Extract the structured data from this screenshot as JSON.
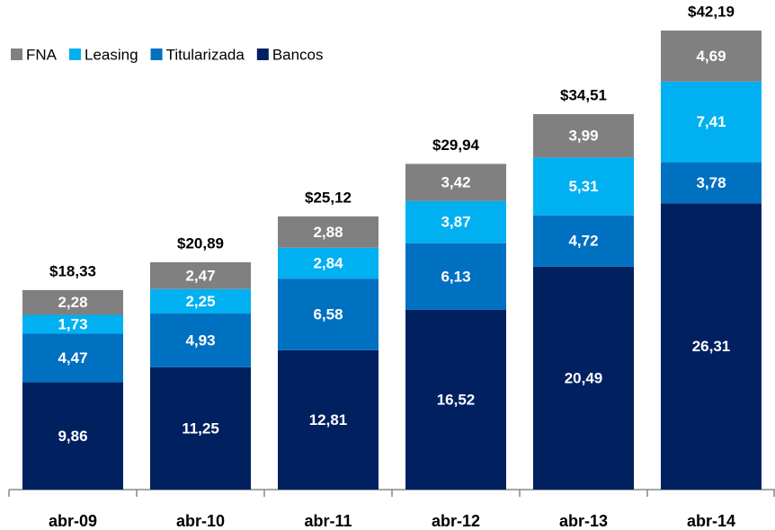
{
  "chart_data": {
    "type": "stacked_bar",
    "categories": [
      "abr-09",
      "abr-10",
      "abr-11",
      "abr-12",
      "abr-13",
      "abr-14"
    ],
    "series": [
      {
        "name": "Bancos",
        "color": "#002060",
        "values": [
          9.86,
          11.25,
          12.81,
          16.52,
          20.49,
          26.31
        ],
        "value_labels": [
          "9,86",
          "11,25",
          "12,81",
          "16,52",
          "20,49",
          "26,31"
        ]
      },
      {
        "name": "Titularizada",
        "color": "#0070c0",
        "values": [
          4.47,
          4.93,
          6.58,
          6.13,
          4.72,
          3.78
        ],
        "value_labels": [
          "4,47",
          "4,93",
          "6,58",
          "6,13",
          "4,72",
          "3,78"
        ]
      },
      {
        "name": "Leasing",
        "color": "#00b0f0",
        "values": [
          1.73,
          2.25,
          2.84,
          3.87,
          5.31,
          7.41
        ],
        "value_labels": [
          "1,73",
          "2,25",
          "2,84",
          "3,87",
          "5,31",
          "7,41"
        ]
      },
      {
        "name": "FNA",
        "color": "#808080",
        "values": [
          2.28,
          2.47,
          2.88,
          3.42,
          3.99,
          4.69
        ],
        "value_labels": [
          "2,28",
          "2,47",
          "2,88",
          "3,42",
          "3,99",
          "4,69"
        ]
      }
    ],
    "totals": {
      "values": [
        18.33,
        20.89,
        25.12,
        29.94,
        34.51,
        42.19
      ],
      "value_labels": [
        "$18,33",
        "$20,89",
        "$25,12",
        "$29,94",
        "$34,51",
        "$42,19"
      ]
    },
    "legend": "top-left",
    "ylim": [
      0,
      45
    ]
  }
}
